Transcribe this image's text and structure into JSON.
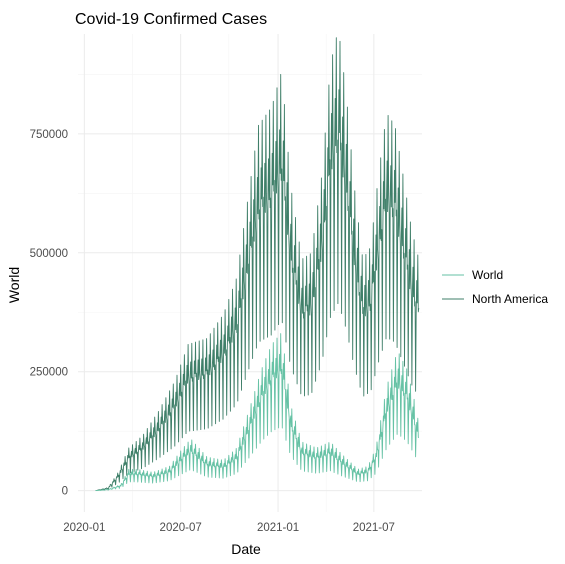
{
  "chart_data": {
    "type": "line",
    "title": "Covid-19 Confirmed Cases",
    "xlabel": "Date",
    "ylabel": "World",
    "x_ticks": [
      "2020-01",
      "2020-07",
      "2021-01",
      "2021-07"
    ],
    "y_ticks": [
      0,
      250000,
      500000,
      750000
    ],
    "y_tick_labels": [
      "0",
      "250000",
      "500000",
      "750000"
    ],
    "xlim": [
      "2019-12-20",
      "2021-09-30"
    ],
    "ylim": [
      -45000,
      960000
    ],
    "grid": true,
    "legend_position": "right",
    "series": [
      {
        "name": "World",
        "color": "#66c2a5",
        "points": [
          [
            "2020-01-22",
            0
          ],
          [
            "2020-02-15",
            2000
          ],
          [
            "2020-03-10",
            10000
          ],
          [
            "2020-03-25",
            35000
          ],
          [
            "2020-04-10",
            35000
          ],
          [
            "2020-05-10",
            30000
          ],
          [
            "2020-06-10",
            40000
          ],
          [
            "2020-07-01",
            65000
          ],
          [
            "2020-07-20",
            85000
          ],
          [
            "2020-08-20",
            55000
          ],
          [
            "2020-09-20",
            50000
          ],
          [
            "2020-10-15",
            70000
          ],
          [
            "2020-11-10",
            140000
          ],
          [
            "2020-12-01",
            200000
          ],
          [
            "2020-12-20",
            240000
          ],
          [
            "2021-01-08",
            260000
          ],
          [
            "2021-01-25",
            140000
          ],
          [
            "2021-02-15",
            80000
          ],
          [
            "2021-03-15",
            70000
          ],
          [
            "2021-04-10",
            80000
          ],
          [
            "2021-05-01",
            60000
          ],
          [
            "2021-06-01",
            35000
          ],
          [
            "2021-06-20",
            40000
          ],
          [
            "2021-07-05",
            70000
          ],
          [
            "2021-07-25",
            170000
          ],
          [
            "2021-08-15",
            230000
          ],
          [
            "2021-09-01",
            200000
          ],
          [
            "2021-09-15",
            150000
          ],
          [
            "2021-09-24",
            110000
          ]
        ]
      },
      {
        "name": "North America",
        "color": "#3f7f69",
        "points": [
          [
            "2020-01-22",
            0
          ],
          [
            "2020-02-15",
            5000
          ],
          [
            "2020-03-05",
            30000
          ],
          [
            "2020-03-25",
            70000
          ],
          [
            "2020-04-20",
            90000
          ],
          [
            "2020-05-20",
            130000
          ],
          [
            "2020-06-20",
            180000
          ],
          [
            "2020-07-15",
            240000
          ],
          [
            "2020-08-20",
            250000
          ],
          [
            "2020-09-20",
            290000
          ],
          [
            "2020-10-15",
            350000
          ],
          [
            "2020-11-05",
            480000
          ],
          [
            "2020-11-25",
            600000
          ],
          [
            "2020-12-20",
            630000
          ],
          [
            "2021-01-08",
            690000
          ],
          [
            "2021-01-25",
            500000
          ],
          [
            "2021-02-15",
            380000
          ],
          [
            "2021-03-05",
            390000
          ],
          [
            "2021-03-25",
            520000
          ],
          [
            "2021-04-10",
            700000
          ],
          [
            "2021-04-25",
            760000
          ],
          [
            "2021-05-10",
            650000
          ],
          [
            "2021-05-25",
            500000
          ],
          [
            "2021-06-10",
            380000
          ],
          [
            "2021-06-25",
            400000
          ],
          [
            "2021-07-10",
            520000
          ],
          [
            "2021-07-25",
            620000
          ],
          [
            "2021-08-10",
            600000
          ],
          [
            "2021-08-25",
            520000
          ],
          [
            "2021-09-10",
            430000
          ],
          [
            "2021-09-24",
            380000
          ]
        ]
      }
    ]
  }
}
